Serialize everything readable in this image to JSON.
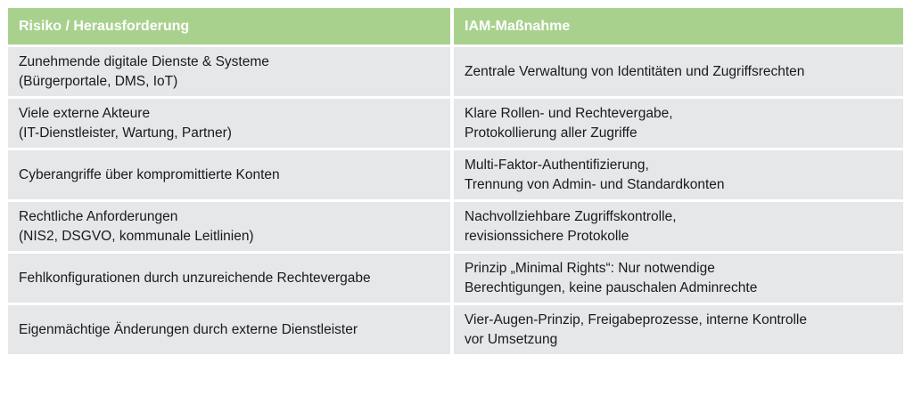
{
  "header": {
    "col1": "Risiko / Herausforderung",
    "col2": "IAM-Maßnahme"
  },
  "rows": [
    {
      "risk": "Zunehmende digitale Dienste & Systeme\n(Bürgerportale,  DMS, IoT)",
      "measure": "Zentrale Verwaltung von Identitäten und Zugriffsrechten"
    },
    {
      "risk": "Viele externe Akteure\n(IT-Dienstleister, Wartung, Partner)",
      "measure": "Klare Rollen- und Rechtevergabe,\nProtokollierung aller Zugriffe"
    },
    {
      "risk": "Cyberangriffe über kompromittierte Konten",
      "measure": "Multi-Faktor-Authentifizierung,\nTrennung von Admin- und Standardkonten"
    },
    {
      "risk": "Rechtliche Anforderungen\n(NIS2, DSGVO, kommunale Leitlinien)",
      "measure": "Nachvollziehbare Zugriffskontrolle,\nrevisionssichere Protokolle"
    },
    {
      "risk": "Fehlkonfigurationen durch unzureichende Rechtevergabe",
      "measure": "Prinzip „Minimal Rights“: Nur notwendige\nBerechtigungen, keine pauschalen Adminrechte"
    },
    {
      "risk": "Eigenmächtige Änderungen durch externe Dienstleister",
      "measure": "Vier-Augen-Prinzip, Freigabeprozesse, interne Kontrolle\nvor Umsetzung"
    }
  ]
}
